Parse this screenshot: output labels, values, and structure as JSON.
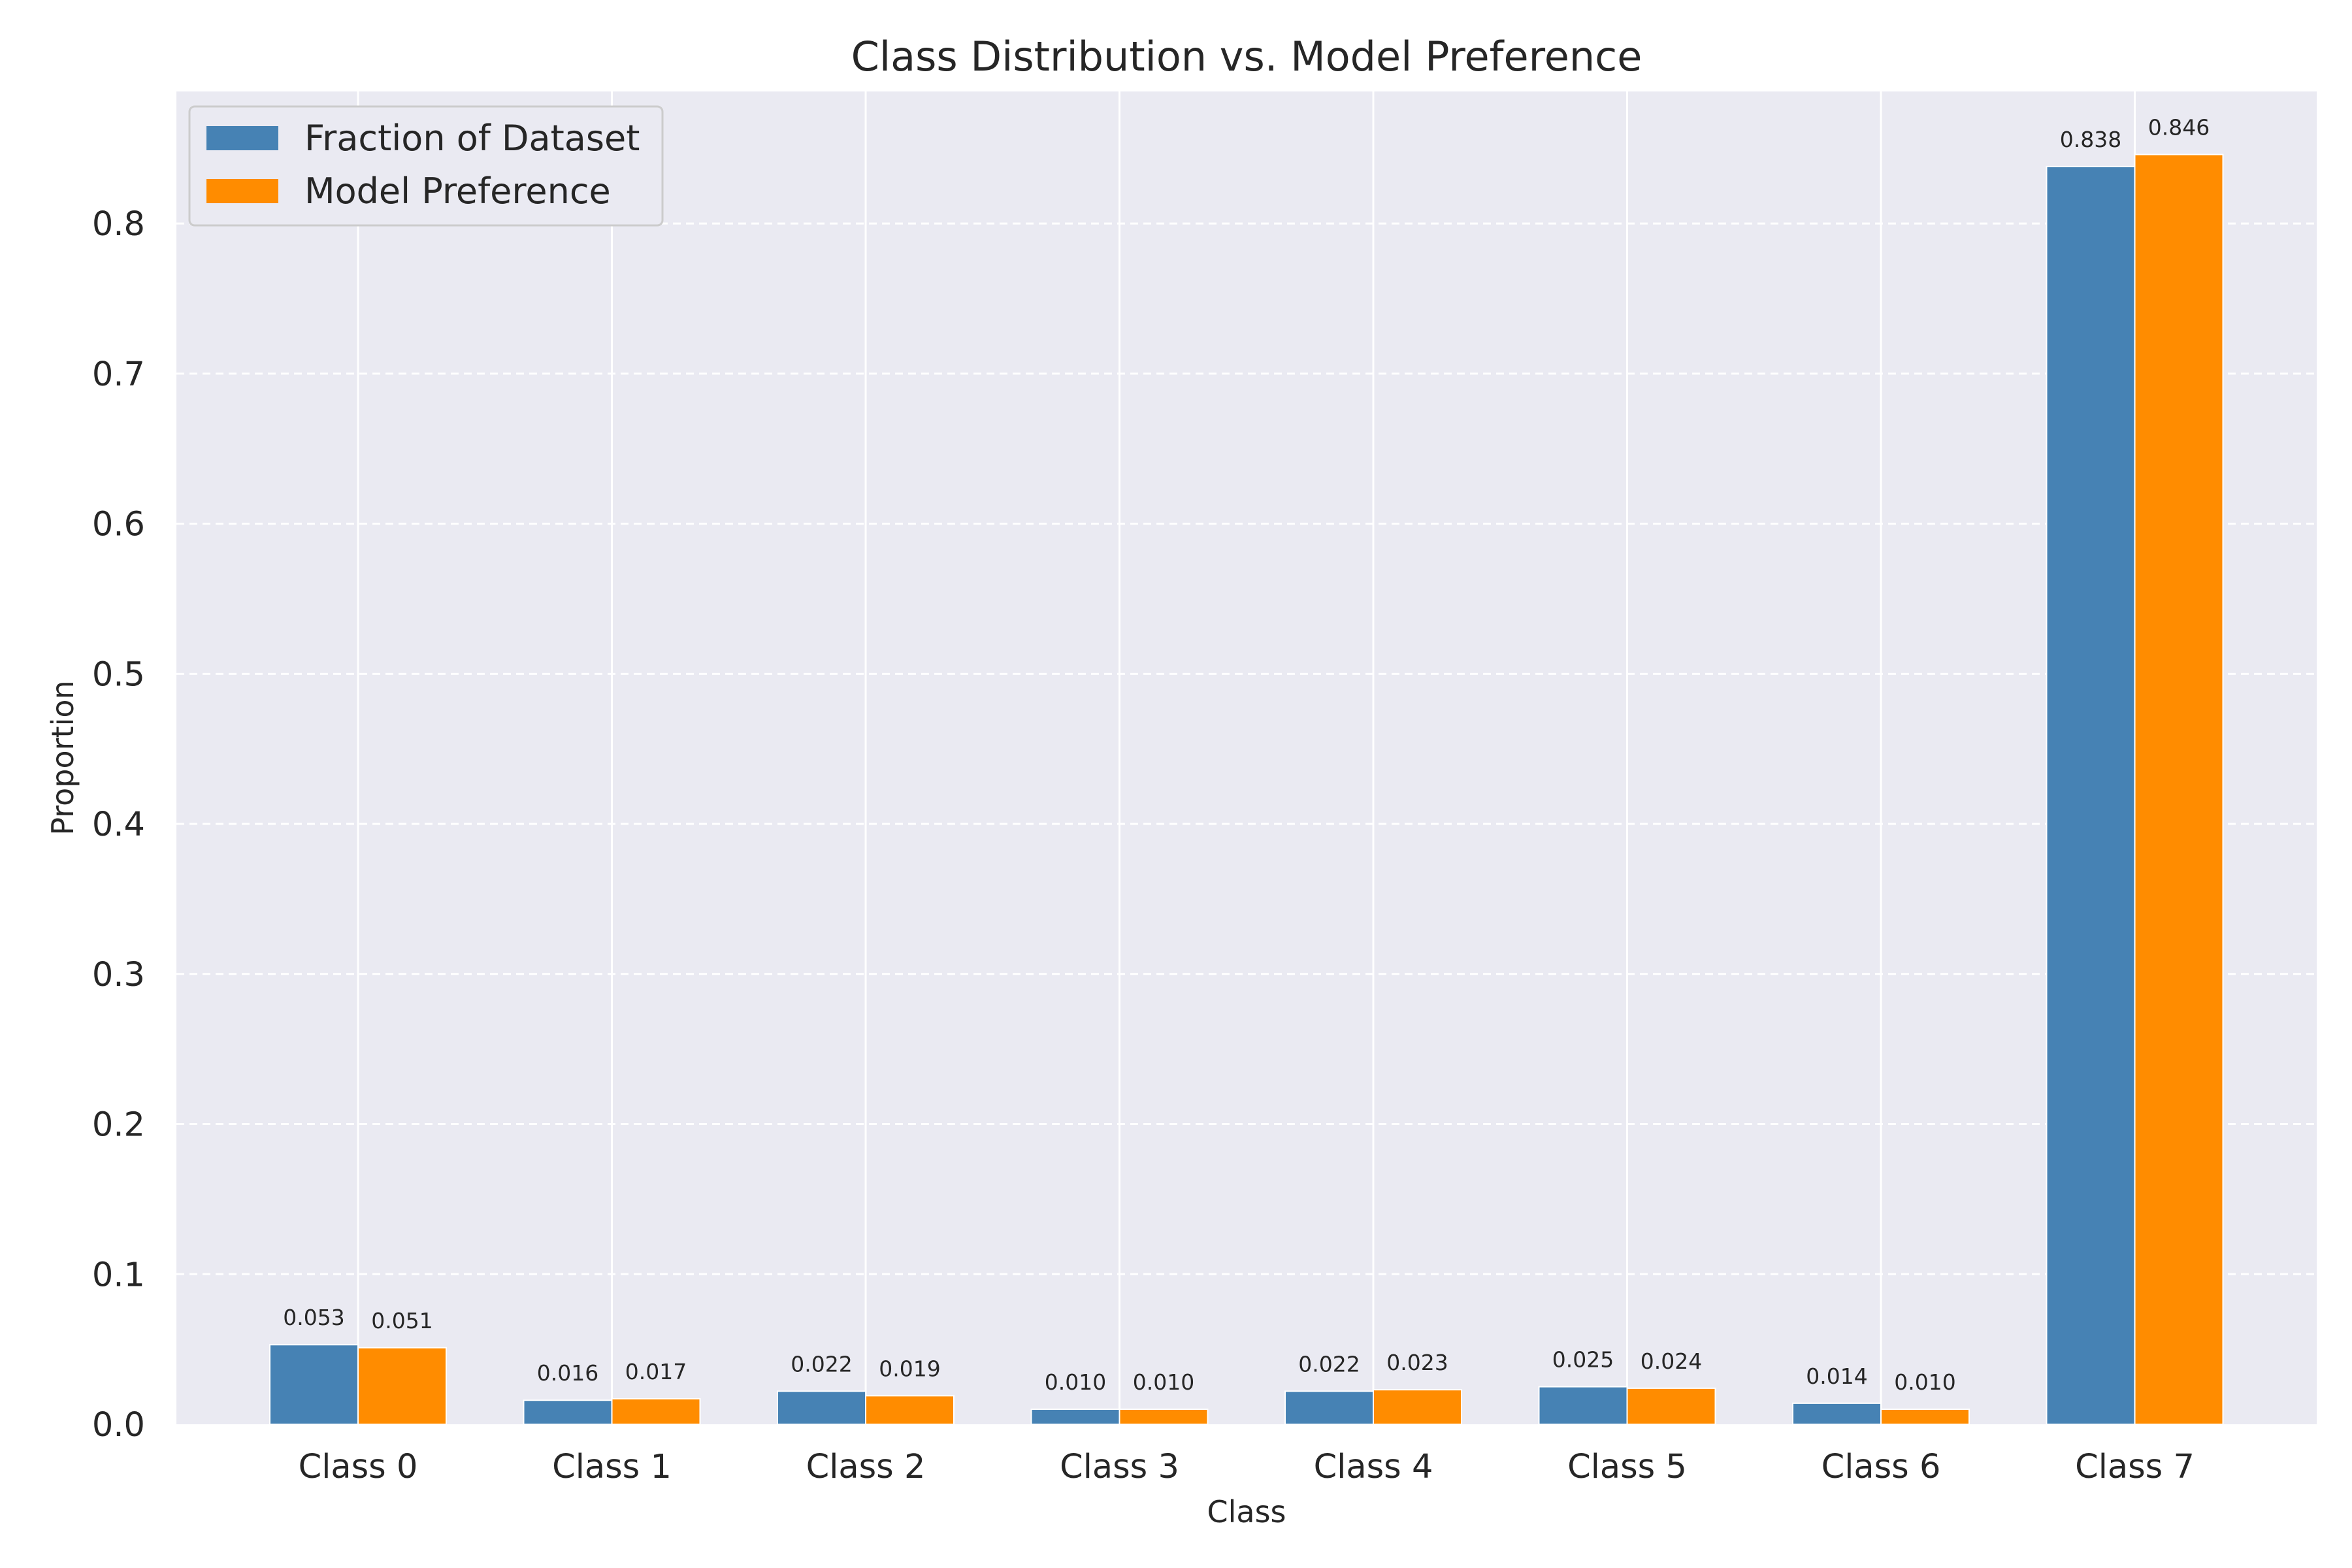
{
  "chart_data": {
    "type": "bar",
    "title": "Class Distribution vs. Model Preference",
    "xlabel": "Class",
    "ylabel": "Proportion",
    "categories": [
      "Class 0",
      "Class 1",
      "Class 2",
      "Class 3",
      "Class 4",
      "Class 5",
      "Class 6",
      "Class 7"
    ],
    "series": [
      {
        "name": "Fraction of Dataset",
        "color": "#4682b4",
        "values": [
          0.053,
          0.016,
          0.022,
          0.01,
          0.022,
          0.025,
          0.014,
          0.838
        ],
        "labels": [
          "0.053",
          "0.016",
          "0.022",
          "0.010",
          "0.022",
          "0.025",
          "0.014",
          "0.838"
        ]
      },
      {
        "name": "Model Preference",
        "color": "#ff8c00",
        "values": [
          0.051,
          0.017,
          0.019,
          0.01,
          0.023,
          0.024,
          0.01,
          0.846
        ],
        "labels": [
          "0.051",
          "0.017",
          "0.019",
          "0.010",
          "0.023",
          "0.024",
          "0.010",
          "0.846"
        ]
      }
    ],
    "ylim": [
      0,
      0.888
    ],
    "yticks": [
      0.0,
      0.1,
      0.2,
      0.3,
      0.4,
      0.5,
      0.6,
      0.7,
      0.8
    ],
    "ytick_labels": [
      "0.0",
      "0.1",
      "0.2",
      "0.3",
      "0.4",
      "0.5",
      "0.6",
      "0.7",
      "0.8"
    ],
    "grid": true,
    "legend_position": "top-left",
    "background": "#eaeaf2"
  }
}
